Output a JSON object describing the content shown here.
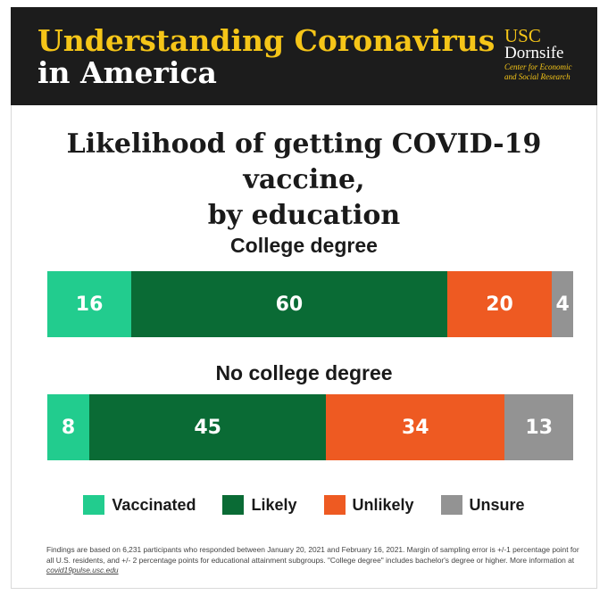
{
  "header": {
    "title_line1": "Understanding Coronavirus",
    "title_line2": "in America",
    "logo_usc": "USC",
    "logo_dornsife": "Dornsife",
    "logo_sub1": "Center for Economic",
    "logo_sub2": "and Social Research"
  },
  "colors": {
    "header_bg": "#1c1c1c",
    "title_yellow": "#f5c518",
    "vaccinated": "#22cc8e",
    "likely": "#0a6b35",
    "unlikely": "#ee5a22",
    "unsure": "#939393"
  },
  "chart_data": {
    "type": "bar",
    "orientation": "horizontal",
    "stacked": true,
    "title_line1": "Likelihood of getting COVID-19 vaccine,",
    "title_line2": "by education",
    "categories": [
      "College degree",
      "No college degree"
    ],
    "series": [
      {
        "name": "Vaccinated",
        "values": [
          16,
          8
        ]
      },
      {
        "name": "Likely",
        "values": [
          60,
          45
        ]
      },
      {
        "name": "Unlikely",
        "values": [
          20,
          34
        ]
      },
      {
        "name": "Unsure",
        "values": [
          4,
          13
        ]
      }
    ],
    "legend_position": "bottom",
    "xlim": [
      0,
      100
    ]
  },
  "footnote": {
    "text": "Findings are based on 6,231 participants who responded between January 20, 2021 and February 16, 2021. Margin of sampling error is +/-1 percentage point for all U.S. residents, and +/- 2 percentage points for educational attainment subgroups. \"College degree\" includes bachelor's degree or higher. More information at",
    "link": "covid19pulse.usc.edu"
  }
}
